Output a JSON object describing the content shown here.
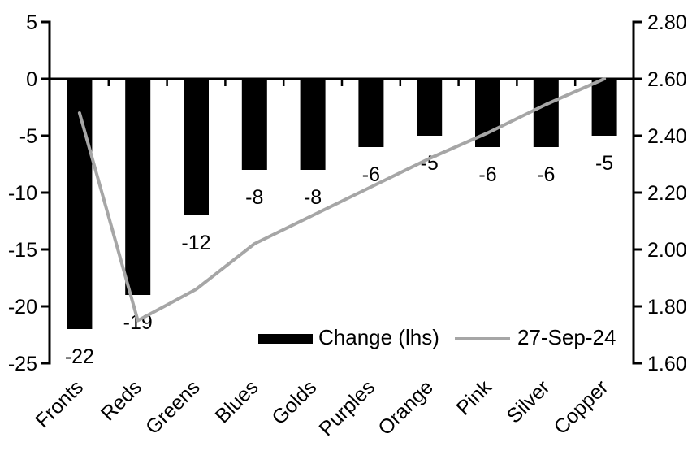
{
  "chart_data": {
    "type": "bar",
    "subtype": "bar-line-combo",
    "title": "",
    "categories": [
      "Fronts",
      "Reds",
      "Greens",
      "Blues",
      "Golds",
      "Purples",
      "Orange",
      "Pink",
      "Silver",
      "Copper"
    ],
    "series": [
      {
        "name": "Change (lhs)",
        "type": "bar",
        "axis": "left",
        "color": "#000000",
        "values": [
          -22,
          -19,
          -12,
          -8,
          -8,
          -6,
          -5,
          -6,
          -6,
          -5
        ],
        "data_labels": [
          "-22",
          "-19",
          "-12",
          "-8",
          "-8",
          "-6",
          "-5",
          "-6",
          "-6",
          "-5"
        ]
      },
      {
        "name": "27-Sep-24",
        "type": "line",
        "axis": "right",
        "color": "#A6A6A6",
        "values": [
          2.48,
          1.75,
          1.86,
          2.02,
          2.12,
          2.22,
          2.32,
          2.41,
          2.51,
          2.6
        ]
      }
    ],
    "left_axis": {
      "min": -25,
      "max": 5,
      "tick_labels": [
        "5",
        "0",
        "-5",
        "-10",
        "-15",
        "-20",
        "-25"
      ]
    },
    "right_axis": {
      "min": 1.6,
      "max": 2.8,
      "tick_labels": [
        "2.80",
        "2.60",
        "2.40",
        "2.20",
        "2.00",
        "1.80",
        "1.60"
      ]
    },
    "legend": {
      "position": "bottom-inside",
      "entries": [
        {
          "label": "Change (lhs)",
          "swatch": "bar",
          "color": "#000000"
        },
        {
          "label": "27-Sep-24",
          "swatch": "line",
          "color": "#A6A6A6"
        }
      ]
    },
    "grid": false,
    "background": "#FFFFFF",
    "axis_color": "#000000",
    "label_rotation_deg": -45
  }
}
